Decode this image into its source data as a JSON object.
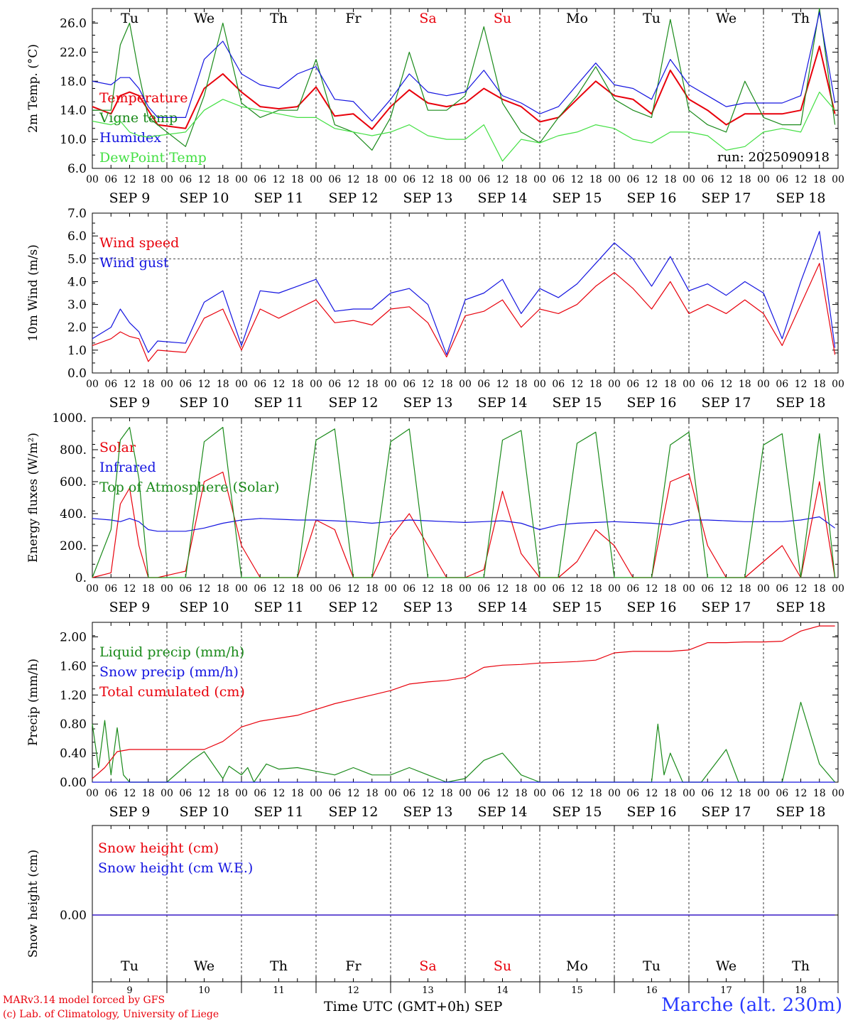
{
  "days": [
    "Tu",
    "We",
    "Th",
    "Fr",
    "Sa",
    "Su",
    "Mo",
    "Tu",
    "We",
    "Th"
  ],
  "day_colors": [
    "#000000",
    "#000000",
    "#000000",
    "#000000",
    "#e8000b",
    "#e8000b",
    "#000000",
    "#000000",
    "#000000",
    "#000000"
  ],
  "date_labels": [
    "SEP  9",
    "SEP 10",
    "SEP 11",
    "SEP 12",
    "SEP 13",
    "SEP 14",
    "SEP 15",
    "SEP 16",
    "SEP 17",
    "SEP 18"
  ],
  "day_numbers": [
    "9",
    "10",
    "11",
    "12",
    "13",
    "14",
    "15",
    "16",
    "17",
    "18"
  ],
  "hour_ticks": [
    "00",
    "06",
    "12",
    "18"
  ],
  "run_label": "run: 2025090918",
  "footer": {
    "line1": "MARv3.14 model forced by GFS",
    "line2": "(c) Lab. of Climatology, University of Liege",
    "x_title": "Time UTC (GMT+0h)",
    "month": "SEP",
    "station": "Marche (alt. 230m)"
  },
  "colors": {
    "red": "#e8000b",
    "green": "#1a8a1a",
    "blue": "#1414e0",
    "light_green": "#44e044"
  },
  "chart_data": [
    {
      "type": "line",
      "ylabel": "2m Temp. (°C)",
      "ylim": [
        6,
        28
      ],
      "yticks": [
        "6.0",
        "10.0",
        "14.0",
        "18.0",
        "22.0",
        "26.0"
      ],
      "x_hours": [
        0,
        6,
        9,
        12,
        15,
        18,
        21,
        30,
        36,
        42,
        48,
        54,
        60,
        66,
        72,
        78,
        84,
        90,
        96,
        102,
        108,
        114,
        120,
        126,
        132,
        138,
        144,
        150,
        156,
        162,
        168,
        174,
        180,
        186,
        192,
        198,
        204,
        210,
        216,
        222,
        228,
        234,
        239
      ],
      "series": [
        {
          "name": "Temperature",
          "color": "#e8000b",
          "values": [
            14.5,
            13.5,
            16,
            16.5,
            16,
            14,
            12,
            11.5,
            17,
            19,
            16.5,
            14.5,
            14.2,
            14.5,
            17.2,
            13.2,
            13.5,
            11.4,
            14.5,
            16.8,
            15,
            14.5,
            15,
            17,
            15.5,
            14.5,
            12.4,
            13,
            15.5,
            18,
            16,
            15.5,
            13.5,
            19.5,
            15.5,
            14,
            12,
            13.5,
            13.5,
            13.5,
            14,
            22.8,
            13.5
          ]
        },
        {
          "name": "Vigne temp",
          "color": "#1a8a1a",
          "values": [
            14,
            14,
            23,
            26,
            19,
            13,
            12,
            9,
            16,
            26,
            15,
            13,
            14,
            14,
            21,
            12,
            11,
            8.5,
            13,
            22,
            14,
            14,
            16,
            25.5,
            15,
            11,
            9.5,
            13,
            16,
            20,
            15.5,
            14,
            13,
            26.5,
            14,
            12,
            11,
            18,
            13,
            12,
            12,
            28,
            12
          ]
        },
        {
          "name": "Humidex",
          "color": "#1414e0",
          "values": [
            18,
            17.5,
            18.5,
            18.5,
            17,
            14.5,
            13,
            13,
            21,
            23.5,
            19,
            17.5,
            17,
            19,
            20,
            15.5,
            15.2,
            12.5,
            15.5,
            19,
            16.5,
            16,
            16.5,
            19.5,
            16,
            15,
            13.5,
            14.5,
            17.5,
            20.5,
            17.5,
            17,
            15.5,
            21,
            17.5,
            16,
            14.5,
            15,
            15,
            15,
            16,
            27.5,
            15
          ]
        },
        {
          "name": "DewPoint Temp",
          "color": "#44e044",
          "values": [
            12.5,
            12,
            12.5,
            11,
            10.5,
            10.3,
            10.5,
            11,
            14,
            15.5,
            14.5,
            14,
            13.5,
            13,
            13,
            11.5,
            11,
            10.5,
            11,
            12,
            10.5,
            10,
            10,
            12,
            7,
            10,
            9.5,
            10.5,
            11,
            12,
            11.5,
            10,
            9.5,
            11,
            11,
            10.5,
            8.5,
            9,
            11,
            11.5,
            11,
            16.5,
            14
          ]
        }
      ]
    },
    {
      "type": "line",
      "ylabel": "10m Wind (m/s)",
      "ylim": [
        0,
        7
      ],
      "yticks": [
        "0.0",
        "1.0",
        "2.0",
        "3.0",
        "4.0",
        "5.0",
        "6.0",
        "7.0"
      ],
      "reference_line": 5.0,
      "x_hours": [
        0,
        6,
        9,
        12,
        15,
        18,
        21,
        30,
        36,
        42,
        48,
        54,
        60,
        66,
        72,
        78,
        84,
        90,
        96,
        102,
        108,
        114,
        120,
        126,
        132,
        138,
        144,
        150,
        156,
        162,
        168,
        174,
        180,
        186,
        192,
        198,
        204,
        210,
        216,
        222,
        228,
        234,
        239
      ],
      "series": [
        {
          "name": "Wind speed",
          "color": "#e8000b",
          "values": [
            1.2,
            1.5,
            1.8,
            1.6,
            1.5,
            0.5,
            1.0,
            0.9,
            2.4,
            2.8,
            1.0,
            2.8,
            2.4,
            2.8,
            3.2,
            2.2,
            2.3,
            2.1,
            2.8,
            2.9,
            2.2,
            0.7,
            2.5,
            2.7,
            3.2,
            2.0,
            2.8,
            2.6,
            3.0,
            3.8,
            4.4,
            3.7,
            2.8,
            4.0,
            2.6,
            3.0,
            2.6,
            3.2,
            2.6,
            1.2,
            3.0,
            4.8,
            0.8
          ]
        },
        {
          "name": "Wind gust",
          "color": "#1414e0",
          "values": [
            1.5,
            2.0,
            2.8,
            2.2,
            1.8,
            0.9,
            1.4,
            1.3,
            3.1,
            3.6,
            1.2,
            3.6,
            3.5,
            3.8,
            4.1,
            2.7,
            2.8,
            2.8,
            3.5,
            3.7,
            3.0,
            0.8,
            3.2,
            3.5,
            4.1,
            2.6,
            3.7,
            3.3,
            3.9,
            4.8,
            5.7,
            5.0,
            3.8,
            5.1,
            3.6,
            3.9,
            3.4,
            4.0,
            3.5,
            1.5,
            4.0,
            6.2,
            1.1
          ]
        }
      ]
    },
    {
      "type": "line",
      "ylabel": "Energy fluxes (W/m²)",
      "ylim": [
        0,
        1000
      ],
      "yticks": [
        "0.",
        "200.",
        "400.",
        "600.",
        "800.",
        "1000."
      ],
      "x_hours": [
        0,
        6,
        9,
        12,
        15,
        18,
        21,
        30,
        36,
        42,
        48,
        54,
        60,
        66,
        72,
        78,
        84,
        90,
        96,
        102,
        108,
        114,
        120,
        126,
        132,
        138,
        144,
        150,
        156,
        162,
        168,
        174,
        180,
        186,
        192,
        198,
        204,
        210,
        216,
        222,
        228,
        234,
        239
      ],
      "series": [
        {
          "name": "Solar",
          "color": "#e8000b",
          "values": [
            0,
            30,
            460,
            560,
            200,
            0,
            0,
            40,
            600,
            660,
            200,
            0,
            0,
            0,
            360,
            300,
            0,
            0,
            250,
            400,
            200,
            0,
            0,
            50,
            540,
            150,
            0,
            0,
            100,
            300,
            200,
            0,
            0,
            600,
            650,
            200,
            0,
            0,
            100,
            200,
            0,
            600,
            0
          ]
        },
        {
          "name": "Infrared",
          "color": "#1414e0",
          "values": [
            370,
            360,
            350,
            370,
            350,
            300,
            290,
            290,
            310,
            340,
            360,
            370,
            365,
            360,
            360,
            355,
            350,
            340,
            350,
            360,
            355,
            350,
            345,
            350,
            355,
            340,
            300,
            330,
            340,
            345,
            350,
            345,
            340,
            330,
            360,
            360,
            355,
            350,
            350,
            350,
            360,
            380,
            310
          ]
        },
        {
          "name": "Top of Atmosphere (Solar)",
          "color": "#1a8a1a",
          "values": [
            0,
            300,
            860,
            940,
            620,
            0,
            0,
            0,
            850,
            940,
            0,
            0,
            0,
            0,
            860,
            930,
            0,
            0,
            850,
            930,
            0,
            0,
            0,
            0,
            860,
            920,
            0,
            0,
            840,
            910,
            0,
            0,
            0,
            830,
            910,
            0,
            0,
            0,
            830,
            900,
            0,
            900,
            0
          ]
        }
      ]
    },
    {
      "type": "line",
      "ylabel": "Precip (mm/h)",
      "ylim": [
        0,
        2.2
      ],
      "yticks": [
        "0.00",
        "0.40",
        "0.80",
        "1.20",
        "1.60",
        "2.00"
      ],
      "series": [
        {
          "name": "Liquid precip (mm/h)",
          "color": "#1a8a1a",
          "x_hours": [
            0,
            2,
            4,
            6,
            8,
            10,
            12,
            24,
            32,
            36,
            42,
            44,
            48,
            50,
            52,
            56,
            60,
            66,
            72,
            78,
            84,
            90,
            96,
            102,
            108,
            114,
            120,
            126,
            132,
            138,
            144,
            150,
            156,
            162,
            168,
            174,
            180,
            182,
            184,
            186,
            190,
            192,
            196,
            204,
            208,
            210,
            216,
            222,
            228,
            234,
            239
          ],
          "values": [
            0.8,
            0.2,
            0.85,
            0.1,
            0.75,
            0.1,
            0,
            0,
            0.3,
            0.42,
            0.05,
            0.22,
            0.1,
            0.2,
            0,
            0.25,
            0.18,
            0.2,
            0.15,
            0.1,
            0.2,
            0.1,
            0.1,
            0.2,
            0.1,
            0,
            0.05,
            0.3,
            0.4,
            0.1,
            0,
            0,
            0,
            0,
            0,
            0,
            0,
            0.8,
            0.1,
            0.4,
            0,
            0,
            0,
            0.45,
            0,
            0,
            0,
            0,
            1.1,
            0.25,
            0
          ]
        },
        {
          "name": "Snow precip (mm/h)",
          "color": "#1414e0",
          "x_hours": [
            0,
            239
          ],
          "values": [
            0,
            0
          ]
        },
        {
          "name": "Total cumulated (cm)",
          "color": "#e8000b",
          "x_hours": [
            0,
            4,
            8,
            12,
            24,
            36,
            42,
            48,
            54,
            60,
            66,
            72,
            78,
            84,
            90,
            96,
            102,
            108,
            114,
            120,
            126,
            132,
            138,
            144,
            150,
            156,
            162,
            168,
            174,
            180,
            186,
            192,
            198,
            204,
            210,
            216,
            222,
            228,
            234,
            239
          ],
          "values": [
            0.05,
            0.2,
            0.42,
            0.45,
            0.45,
            0.45,
            0.56,
            0.76,
            0.84,
            0.88,
            0.92,
            1.0,
            1.08,
            1.14,
            1.2,
            1.26,
            1.35,
            1.38,
            1.4,
            1.44,
            1.58,
            1.61,
            1.62,
            1.64,
            1.65,
            1.66,
            1.68,
            1.78,
            1.8,
            1.8,
            1.8,
            1.82,
            1.92,
            1.92,
            1.93,
            1.93,
            1.94,
            2.08,
            2.15,
            2.15
          ]
        }
      ]
    },
    {
      "type": "line",
      "ylabel": "Snow height (cm)",
      "yticks": [
        "0.00"
      ],
      "series": [
        {
          "name": "Snow height (cm)",
          "color": "#e8000b",
          "x_hours": [
            0,
            239
          ],
          "values": [
            0,
            0
          ]
        },
        {
          "name": "Snow height (cm W.E.)",
          "color": "#1414e0",
          "x_hours": [
            0,
            239
          ],
          "values": [
            0,
            0
          ]
        }
      ]
    }
  ]
}
